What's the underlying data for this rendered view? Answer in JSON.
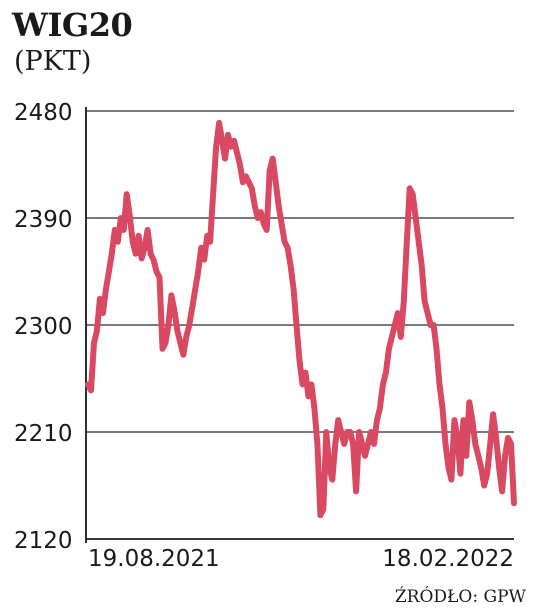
{
  "chart_data": {
    "type": "line",
    "title": "WIG20",
    "subtitle": "(PKT)",
    "source": "ŹRÓDŁO: GPW",
    "ylim": [
      2120,
      2480
    ],
    "yticks": [
      2480,
      2390,
      2300,
      2210,
      2120
    ],
    "grid": true,
    "line_color": "#d94a62",
    "x_labels": [
      {
        "label": "19.08.2021",
        "pos": 0.0
      },
      {
        "label": "18.02.2022",
        "pos": 1.0
      }
    ],
    "series": [
      {
        "values": [
          2250,
          2245,
          2285,
          2295,
          2322,
          2310,
          2330,
          2345,
          2360,
          2380,
          2370,
          2390,
          2380,
          2410,
          2392,
          2370,
          2360,
          2375,
          2356,
          2365,
          2380,
          2360,
          2355,
          2345,
          2340,
          2280,
          2285,
          2300,
          2325,
          2312,
          2295,
          2285,
          2275,
          2290,
          2300,
          2315,
          2330,
          2345,
          2365,
          2355,
          2375,
          2370,
          2410,
          2450,
          2470,
          2455,
          2440,
          2460,
          2450,
          2455,
          2445,
          2435,
          2420,
          2425,
          2420,
          2415,
          2400,
          2390,
          2395,
          2385,
          2380,
          2430,
          2440,
          2420,
          2400,
          2385,
          2370,
          2365,
          2350,
          2330,
          2300,
          2270,
          2250,
          2260,
          2240,
          2250,
          2230,
          2200,
          2140,
          2145,
          2210,
          2180,
          2170,
          2200,
          2220,
          2210,
          2200,
          2210,
          2210,
          2200,
          2160,
          2210,
          2200,
          2190,
          2200,
          2210,
          2200,
          2220,
          2230,
          2250,
          2260,
          2280,
          2290,
          2300,
          2310,
          2290,
          2320,
          2370,
          2415,
          2410,
          2390,
          2370,
          2350,
          2320,
          2310,
          2300,
          2300,
          2280,
          2250,
          2230,
          2200,
          2180,
          2170,
          2220,
          2205,
          2175,
          2220,
          2190,
          2235,
          2220,
          2200,
          2190,
          2180,
          2165,
          2175,
          2200,
          2225,
          2205,
          2180,
          2160,
          2190,
          2205,
          2200,
          2150
        ]
      }
    ]
  }
}
